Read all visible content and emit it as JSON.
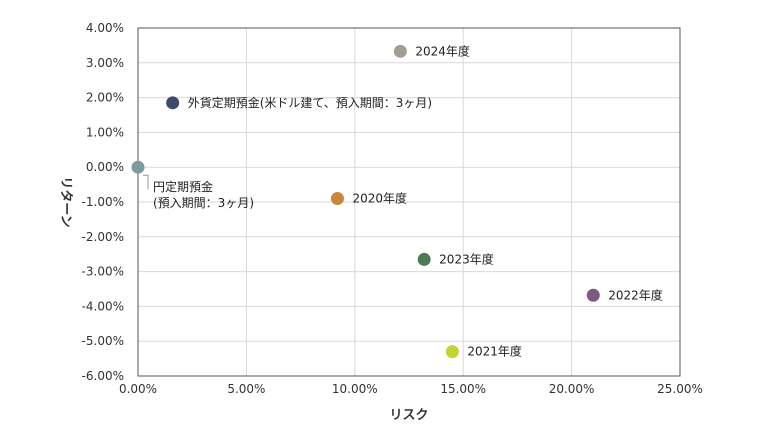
{
  "chart_data": {
    "type": "scatter",
    "xlabel": "リスク",
    "ylabel": "リターン",
    "xlim": [
      0,
      25
    ],
    "ylim": [
      -6,
      4
    ],
    "x_ticks": [
      "0.00%",
      "5.00%",
      "10.00%",
      "15.00%",
      "20.00%",
      "25.00%"
    ],
    "y_ticks": [
      "4.00%",
      "3.00%",
      "2.00%",
      "1.00%",
      "0.00%",
      "-1.00%",
      "-2.00%",
      "-3.00%",
      "-4.00%",
      "-5.00%",
      "-6.00%"
    ],
    "grid": true,
    "points": [
      {
        "label": "2024年度",
        "x": 12.1,
        "y": 3.33,
        "color": "#a39e8f"
      },
      {
        "label": "外貨定期預金(米ドル建て、預入期間：3ヶ月)",
        "x": 1.6,
        "y": 1.85,
        "color": "#3e4a6d"
      },
      {
        "label": "円定期預金\n(預入期間：3ヶ月)",
        "x": 0.0,
        "y": 0.0,
        "color": "#7f9a9c"
      },
      {
        "label": "2020年度",
        "x": 9.2,
        "y": -0.9,
        "color": "#c8873a"
      },
      {
        "label": "2023年度",
        "x": 13.2,
        "y": -2.65,
        "color": "#4a7c54"
      },
      {
        "label": "2022年度",
        "x": 21.0,
        "y": -3.68,
        "color": "#7d5a7f"
      },
      {
        "label": "2021年度",
        "x": 14.5,
        "y": -5.3,
        "color": "#c3d331"
      }
    ]
  }
}
